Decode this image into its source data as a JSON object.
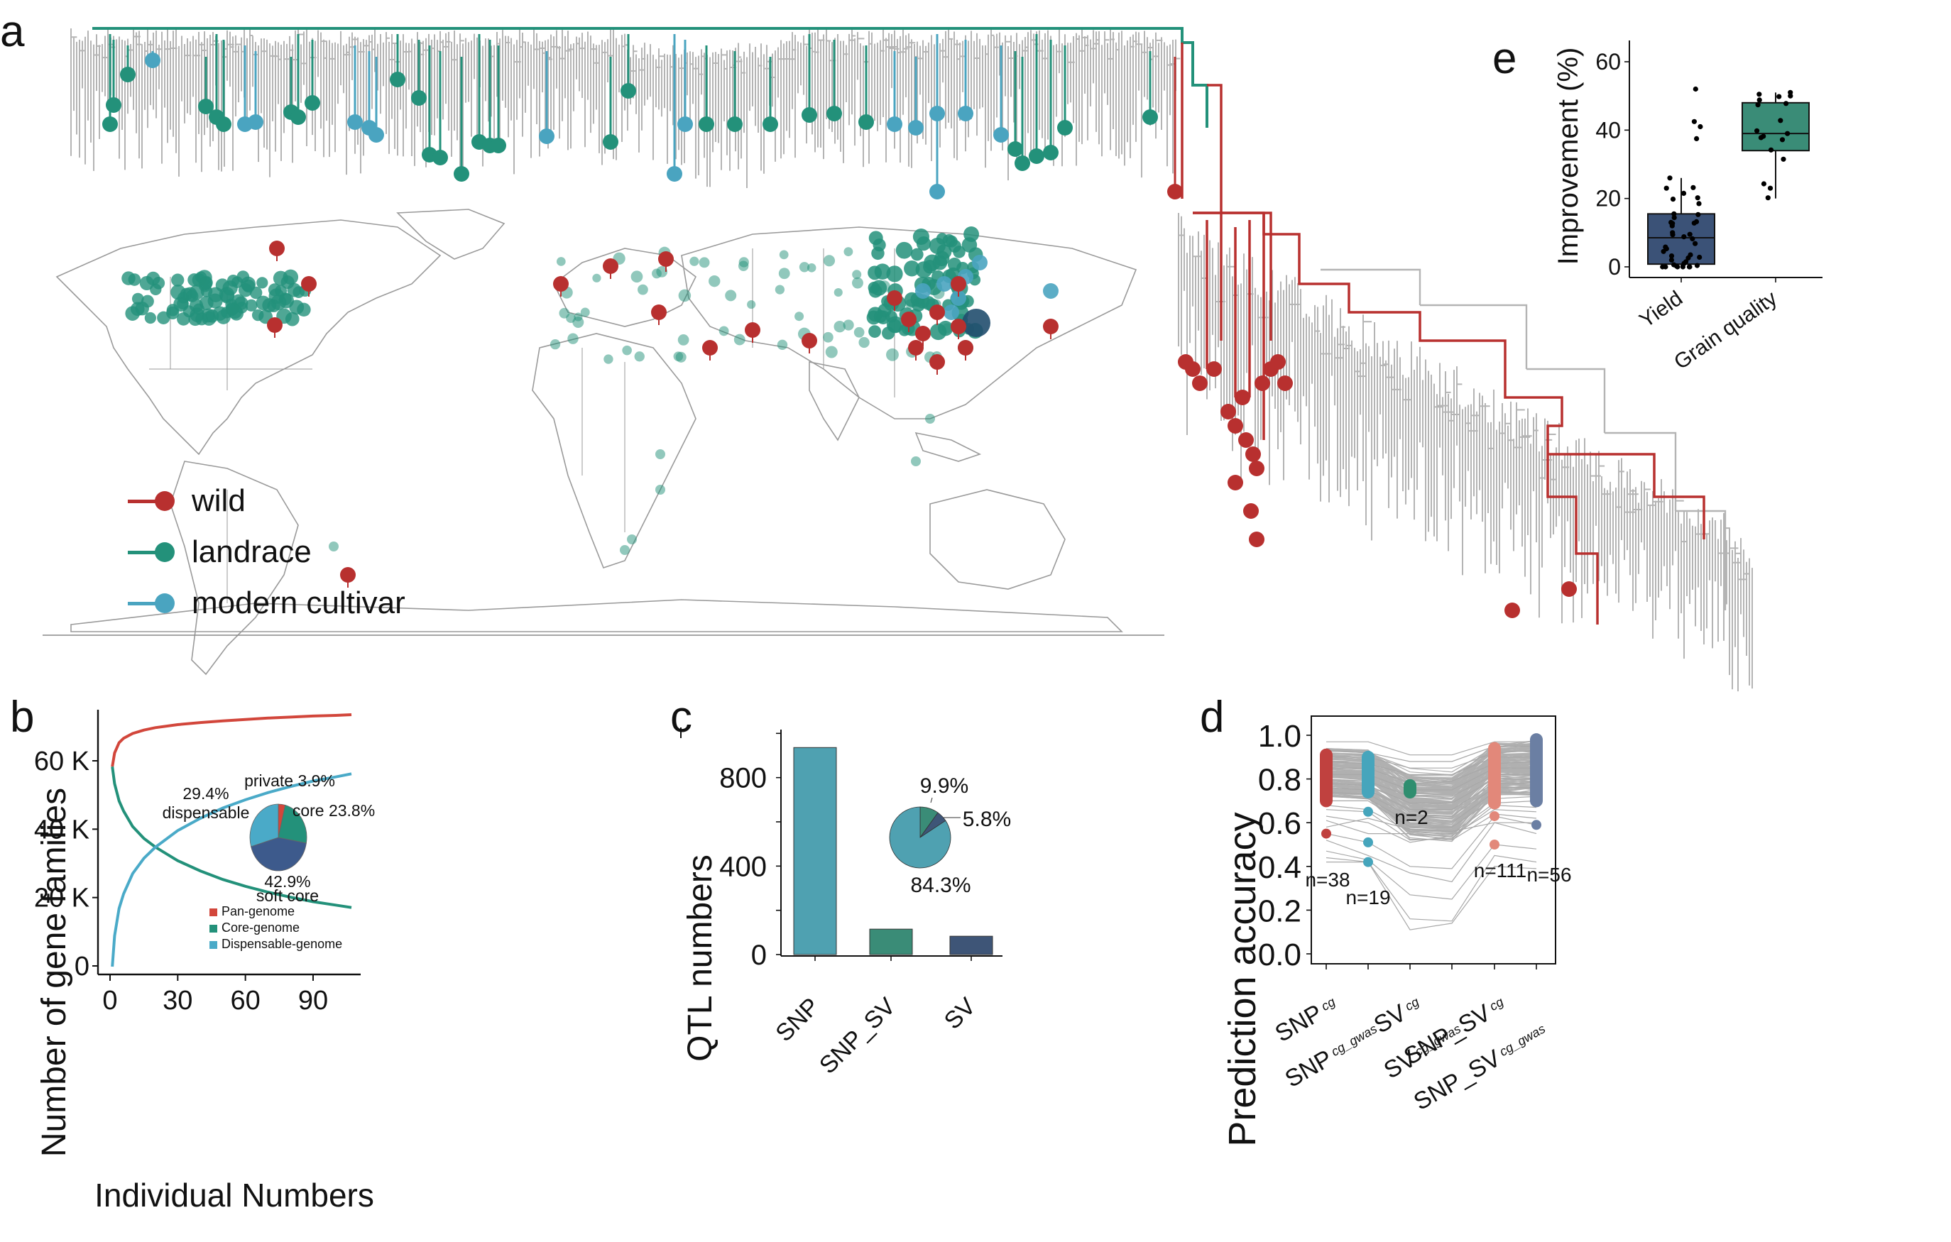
{
  "figure": {
    "panel_labels": [
      "a",
      "b",
      "c",
      "d",
      "e"
    ]
  },
  "colors": {
    "wild": "#B8302F",
    "landrace": "#23917A",
    "modern_cultivar": "#4AA4C0",
    "tree_gray": "#B4B4B4",
    "map_border": "#9A9A9A",
    "snp_bar": "#4FA1B1",
    "snp_sv_bar": "#3A8C77",
    "sv_bar": "#3E5577",
    "pan": "#D2463B",
    "core": "#23917A",
    "dispensable": "#4AAAC8",
    "soft_core": "#3D5A8C",
    "d_snp_cg": "#C0413F",
    "d_snp_cg_gwas": "#46A5BC",
    "d_sv_cg": "#2F8E6F",
    "d_snp_sv_cg": "#E2887A",
    "d_snp_sv_cg_gwas": "#6B7FA3",
    "box_yield": "#3B5277",
    "box_grain": "#3A8C77"
  },
  "panel_a": {
    "legend": [
      {
        "key": "wild",
        "label": "wild"
      },
      {
        "key": "landrace",
        "label": "landrace"
      },
      {
        "key": "modern_cultivar",
        "label": "modern cultivar"
      }
    ]
  },
  "chart_data": [
    {
      "id": "b",
      "type": "line",
      "title": "",
      "xlabel": "Individual Numbers",
      "ylabel": "Number of gene families",
      "xlim": [
        0,
        108
      ],
      "ylim": [
        0,
        75000
      ],
      "xticks": [
        0,
        30,
        60,
        90
      ],
      "xtick_labels": [
        "0",
        "30",
        "60",
        "90"
      ],
      "yticks": [
        0,
        20000,
        40000,
        60000
      ],
      "ytick_labels": [
        "0",
        "20 K",
        "40 K",
        "60 K"
      ],
      "legend_position": "bottom-right",
      "series": [
        {
          "name": "Pan-genome",
          "color_key": "pan",
          "x": [
            1,
            2,
            4,
            6,
            10,
            15,
            20,
            30,
            40,
            50,
            60,
            70,
            80,
            90,
            100,
            107
          ],
          "y": [
            58500,
            62500,
            65500,
            66800,
            68200,
            69200,
            69900,
            70800,
            71400,
            71900,
            72300,
            72700,
            73000,
            73300,
            73500,
            73700
          ]
        },
        {
          "name": "Core-genome",
          "color_key": "core",
          "x": [
            1,
            2,
            4,
            6,
            10,
            15,
            20,
            30,
            40,
            50,
            60,
            70,
            80,
            90,
            100,
            107
          ],
          "y": [
            58500,
            53500,
            48500,
            45500,
            41000,
            37500,
            35000,
            31000,
            28000,
            25500,
            23500,
            21800,
            20300,
            19000,
            18000,
            17300
          ]
        },
        {
          "name": "Dispensable-genome",
          "color_key": "dispensable",
          "x": [
            1,
            2,
            4,
            6,
            10,
            15,
            20,
            30,
            40,
            50,
            60,
            70,
            80,
            90,
            100,
            107
          ],
          "y": [
            0,
            9000,
            17000,
            21300,
            27200,
            31700,
            34900,
            39800,
            43400,
            46400,
            48800,
            50900,
            52700,
            54300,
            55500,
            56400
          ]
        }
      ],
      "inset_pie": {
        "slices": [
          {
            "label": "private",
            "value": 3.9,
            "text": "private 3.9%",
            "color_key": "pan"
          },
          {
            "label": "core",
            "value": 23.8,
            "text": "core 23.8%",
            "color_key": "core"
          },
          {
            "label": "soft core",
            "value": 42.9,
            "text_value": "42.9%",
            "text_label": "soft core",
            "color_key": "soft_core"
          },
          {
            "label": "dispensable",
            "value": 29.4,
            "text_value": "29.4%",
            "text_label": "dispensable",
            "color_key": "dispensable"
          }
        ]
      }
    },
    {
      "id": "c",
      "type": "bar",
      "title": "",
      "xlabel": "",
      "ylabel": "QTL numbers",
      "categories": [
        "SNP",
        "SNP_SV",
        "SV"
      ],
      "values": [
        936,
        115,
        83
      ],
      "color_keys": [
        "snp_bar",
        "snp_sv_bar",
        "sv_bar"
      ],
      "ylim": [
        0,
        1030
      ],
      "yticks": [
        0,
        200,
        400,
        600,
        800,
        1000
      ],
      "ytick_labels": [
        "0",
        "",
        "400",
        "",
        "800",
        ""
      ],
      "inset_pie": {
        "slices": [
          {
            "label": "SNP_SV",
            "value": 9.9,
            "text": "9.9%",
            "color_key": "snp_sv_bar"
          },
          {
            "label": "SV",
            "value": 5.8,
            "text": "5.8%",
            "color_key": "sv_bar"
          },
          {
            "label": "SNP",
            "value": 84.3,
            "text": "84.3%",
            "color_key": "snp_bar"
          }
        ]
      }
    },
    {
      "id": "d",
      "type": "line",
      "title": "",
      "xlabel": "",
      "ylabel": "Prediction accuracy",
      "ylim": [
        -0.05,
        1.05
      ],
      "yticks": [
        0.0,
        0.2,
        0.4,
        0.6,
        0.8,
        1.0
      ],
      "ytick_labels": [
        "0.0",
        "0.2",
        "0.4",
        "0.6",
        "0.8",
        "1.0"
      ],
      "categories": [
        {
          "main": "SNP",
          "sub": "cg"
        },
        {
          "main": "SNP",
          "sub": "cg_gwas"
        },
        {
          "main": "SV",
          "sub": "cg"
        },
        {
          "main": "SV",
          "sub": "cg_gwas"
        },
        {
          "main": "SNP_SV",
          "sub": "cg"
        },
        {
          "main": "SNP_SV",
          "sub": "cg_gwas"
        }
      ],
      "highlight_groups": [
        {
          "column": 0,
          "color_key": "d_snp_cg",
          "n_label": "n=38",
          "range": [
            0.7,
            0.91
          ],
          "outliers": [
            0.55
          ]
        },
        {
          "column": 1,
          "color_key": "d_snp_cg_gwas",
          "n_label": "n=19",
          "range": [
            0.74,
            0.9
          ],
          "outliers": [
            0.65,
            0.51,
            0.42
          ]
        },
        {
          "column": 2,
          "color_key": "d_sv_cg",
          "n_label": "n=2",
          "range": [
            0.74,
            0.77
          ],
          "outliers": []
        },
        {
          "column": 4,
          "color_key": "d_snp_sv_cg",
          "n_label": "n=111",
          "range": [
            0.69,
            0.94
          ],
          "outliers": [
            0.63,
            0.5
          ]
        },
        {
          "column": 5,
          "color_key": "d_snp_sv_cg_gwas",
          "n_label": "n=56",
          "range": [
            0.7,
            0.98
          ],
          "outliers": [
            0.59
          ]
        }
      ],
      "sample_lines": [
        [
          0.97,
          0.97,
          0.91,
          0.91,
          0.97,
          0.97
        ],
        [
          0.93,
          0.92,
          0.88,
          0.88,
          0.95,
          0.95
        ],
        [
          0.9,
          0.9,
          0.85,
          0.85,
          0.92,
          0.93
        ],
        [
          0.88,
          0.87,
          0.82,
          0.82,
          0.9,
          0.9
        ],
        [
          0.85,
          0.85,
          0.78,
          0.79,
          0.87,
          0.88
        ],
        [
          0.82,
          0.82,
          0.75,
          0.75,
          0.85,
          0.85
        ],
        [
          0.8,
          0.79,
          0.72,
          0.72,
          0.82,
          0.82
        ],
        [
          0.78,
          0.77,
          0.69,
          0.69,
          0.8,
          0.8
        ],
        [
          0.76,
          0.75,
          0.66,
          0.66,
          0.78,
          0.78
        ],
        [
          0.74,
          0.73,
          0.63,
          0.63,
          0.76,
          0.76
        ],
        [
          0.72,
          0.71,
          0.6,
          0.6,
          0.74,
          0.74
        ],
        [
          0.7,
          0.7,
          0.58,
          0.58,
          0.71,
          0.72
        ],
        [
          0.68,
          0.66,
          0.56,
          0.55,
          0.69,
          0.7
        ],
        [
          0.66,
          0.65,
          0.52,
          0.53,
          0.68,
          0.67
        ],
        [
          0.63,
          0.6,
          0.51,
          0.54,
          0.66,
          0.65
        ],
        [
          0.61,
          0.55,
          0.55,
          0.52,
          0.64,
          0.62
        ],
        [
          0.58,
          0.62,
          0.57,
          0.56,
          0.6,
          0.6
        ],
        [
          0.55,
          0.51,
          0.4,
          0.39,
          0.63,
          0.59
        ],
        [
          0.52,
          0.45,
          0.37,
          0.33,
          0.6,
          0.55
        ],
        [
          0.47,
          0.43,
          0.27,
          0.25,
          0.5,
          0.48
        ],
        [
          0.44,
          0.42,
          0.16,
          0.15,
          0.45,
          0.42
        ],
        [
          0.42,
          0.42,
          0.11,
          0.14,
          0.4,
          0.39
        ]
      ]
    },
    {
      "id": "e",
      "type": "scatter",
      "title": "",
      "xlabel": "",
      "ylabel": "Improvement (%)",
      "categories": [
        "Yield",
        "Grain quality"
      ],
      "ylim": [
        -3,
        66
      ],
      "yticks": [
        0,
        20,
        40,
        60
      ],
      "ytick_labels": [
        "0",
        "20",
        "40",
        "60"
      ],
      "boxes": [
        {
          "category": "Yield",
          "color_key": "box_yield",
          "whisker_low": 0,
          "q1": 0.8,
          "median": 8.5,
          "q3": 15.5,
          "whisker_high": 26,
          "points": [
            52,
            42.5,
            41,
            37.5,
            26,
            23.2,
            23,
            21.5,
            20.2,
            19.8,
            18.5,
            15.5,
            15.3,
            14.4,
            13.2,
            13,
            12.8,
            12.7,
            12,
            10,
            9.5,
            9.4,
            8.8,
            8.2,
            6.8,
            5.8,
            5.3,
            4.5,
            3.5,
            3.2,
            2.8,
            2.6,
            2,
            1.5,
            1,
            0.6,
            0.4,
            0.2,
            0,
            0,
            0,
            0,
            0,
            0
          ]
        },
        {
          "category": "Grain quality",
          "color_key": "box_grain",
          "whisker_low": 20,
          "q1": 34,
          "median": 39,
          "q3": 48,
          "whisker_high": 51,
          "points": [
            51,
            50.5,
            50,
            49.8,
            48.8,
            47.8,
            47.4,
            42.8,
            39.8,
            39,
            38.2,
            37.8,
            37.2,
            34.2,
            31.5,
            24.3,
            23,
            20.2
          ]
        }
      ]
    }
  ]
}
